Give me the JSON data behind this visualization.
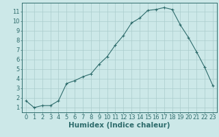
{
  "x": [
    0,
    1,
    2,
    3,
    4,
    5,
    6,
    7,
    8,
    9,
    10,
    11,
    12,
    13,
    14,
    15,
    16,
    17,
    18,
    19,
    20,
    21,
    22,
    23
  ],
  "y": [
    1.7,
    1.0,
    1.2,
    1.2,
    1.7,
    3.5,
    3.8,
    4.2,
    4.5,
    5.5,
    6.3,
    7.5,
    8.5,
    9.8,
    10.3,
    11.1,
    11.2,
    11.4,
    11.2,
    9.6,
    8.3,
    6.8,
    5.2,
    3.3
  ],
  "line_color": "#2d6b6b",
  "marker": "+",
  "marker_size": 3,
  "bg_color": "#cce8e8",
  "grid_color": "#aacccc",
  "xlabel": "Humidex (Indice chaleur)",
  "xlabel_fontsize": 7.5,
  "xlim": [
    -0.5,
    23.5
  ],
  "ylim": [
    0.5,
    11.9
  ],
  "yticks": [
    1,
    2,
    3,
    4,
    5,
    6,
    7,
    8,
    9,
    10,
    11
  ],
  "xticks": [
    0,
    1,
    2,
    3,
    4,
    5,
    6,
    7,
    8,
    9,
    10,
    11,
    12,
    13,
    14,
    15,
    16,
    17,
    18,
    19,
    20,
    21,
    22,
    23
  ],
  "tick_fontsize": 6,
  "axis_color": "#2d6b6b",
  "spine_color": "#2d6b6b"
}
